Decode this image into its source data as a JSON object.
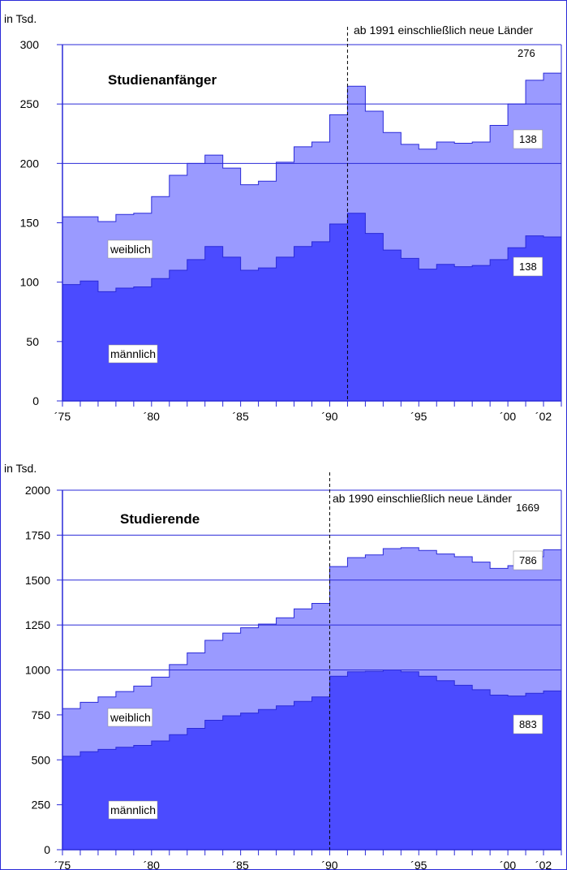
{
  "chart_data": [
    {
      "type": "area",
      "title": "Studienanfänger",
      "unit_label": "in Tsd.",
      "annotation": "ab 1991 einschließlich neue Länder",
      "annotation_year": 1991,
      "x": [
        1975,
        1976,
        1977,
        1978,
        1979,
        1980,
        1981,
        1982,
        1983,
        1984,
        1985,
        1986,
        1987,
        1988,
        1989,
        1990,
        1991,
        1992,
        1993,
        1994,
        1995,
        1996,
        1997,
        1998,
        1999,
        2000,
        2001,
        2002
      ],
      "xlim": [
        1975,
        2003
      ],
      "ylim": [
        0,
        300
      ],
      "yticks": [
        0,
        50,
        100,
        150,
        200,
        250,
        300
      ],
      "xtick_labels": [
        {
          "x": 1975,
          "label": "´75"
        },
        {
          "x": 1980,
          "label": "´80"
        },
        {
          "x": 1985,
          "label": "´85"
        },
        {
          "x": 1990,
          "label": "´90"
        },
        {
          "x": 1995,
          "label": "´95"
        },
        {
          "x": 2000,
          "label": "´00"
        },
        {
          "x": 2002,
          "label": "´02"
        }
      ],
      "grid_lines": [
        200,
        250
      ],
      "series": [
        {
          "name": "männlich",
          "color": "#4b4bff",
          "values": [
            98,
            101,
            92,
            95,
            96,
            103,
            110,
            119,
            130,
            121,
            110,
            112,
            121,
            130,
            134,
            149,
            158,
            141,
            127,
            120,
            111,
            115,
            113,
            114,
            119,
            129,
            139,
            138
          ]
        },
        {
          "name": "weiblich",
          "color": "#9a9aff",
          "values": [
            155,
            155,
            151,
            157,
            158,
            172,
            190,
            200,
            207,
            196,
            182,
            185,
            201,
            214,
            218,
            241,
            265,
            244,
            226,
            216,
            212,
            218,
            217,
            218,
            232,
            250,
            270,
            276
          ]
        }
      ],
      "value_labels": {
        "total": "276",
        "female": "138",
        "male": "138"
      }
    },
    {
      "type": "area",
      "title": "Studierende",
      "unit_label": "in Tsd.",
      "annotation": "ab 1990 einschließlich neue Länder",
      "annotation_year": 1990,
      "x": [
        1975,
        1976,
        1977,
        1978,
        1979,
        1980,
        1981,
        1982,
        1983,
        1984,
        1985,
        1986,
        1987,
        1988,
        1989,
        1990,
        1991,
        1992,
        1993,
        1994,
        1995,
        1996,
        1997,
        1998,
        1999,
        2000,
        2001,
        2002
      ],
      "xlim": [
        1975,
        2003
      ],
      "ylim": [
        0,
        2000
      ],
      "yticks": [
        0,
        250,
        500,
        750,
        1000,
        1250,
        1500,
        1750,
        2000
      ],
      "xtick_labels": [
        {
          "x": 1975,
          "label": "´75"
        },
        {
          "x": 1980,
          "label": "´80"
        },
        {
          "x": 1985,
          "label": "´85"
        },
        {
          "x": 1990,
          "label": "´90"
        },
        {
          "x": 1995,
          "label": "´95"
        },
        {
          "x": 2000,
          "label": "´00"
        },
        {
          "x": 2002,
          "label": "´02"
        }
      ],
      "grid_lines": [
        1000,
        1250,
        1500,
        1750
      ],
      "series": [
        {
          "name": "männlich",
          "color": "#4b4bff",
          "values": [
            520,
            545,
            558,
            570,
            580,
            605,
            640,
            675,
            720,
            745,
            760,
            780,
            800,
            825,
            850,
            965,
            990,
            992,
            1000,
            990,
            965,
            940,
            915,
            890,
            860,
            855,
            870,
            883
          ]
        },
        {
          "name": "weiblich",
          "color": "#9a9aff",
          "values": [
            785,
            820,
            850,
            880,
            910,
            960,
            1030,
            1095,
            1165,
            1205,
            1235,
            1255,
            1290,
            1340,
            1370,
            1575,
            1625,
            1640,
            1675,
            1680,
            1665,
            1645,
            1630,
            1600,
            1565,
            1580,
            1630,
            1669
          ]
        }
      ],
      "value_labels": {
        "total": "1669",
        "female": "786",
        "male": "883"
      }
    }
  ]
}
